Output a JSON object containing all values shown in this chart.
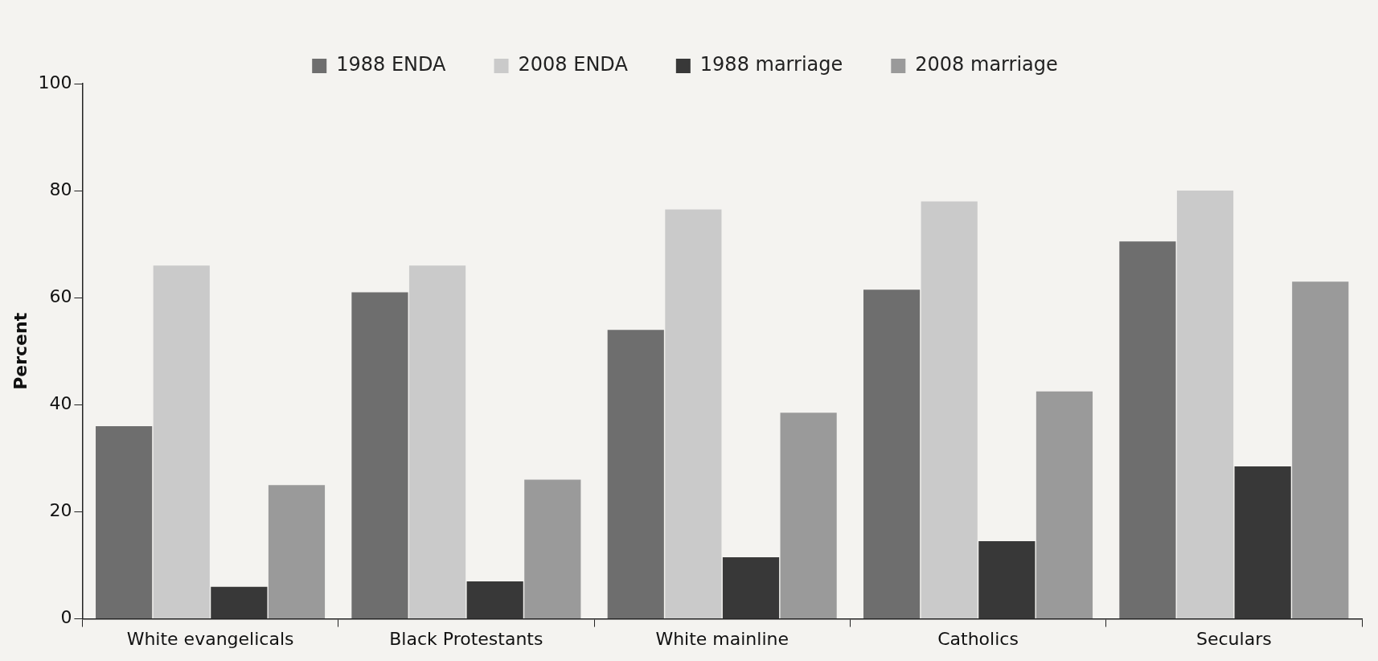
{
  "chart_data": {
    "type": "bar",
    "ylabel": "Percent",
    "categories": [
      "White evangelicals",
      "Black Protestants",
      "White mainline",
      "Catholics",
      "Seculars"
    ],
    "series": [
      {
        "name": "1988 ENDA",
        "color": "#6e6e6e",
        "values": [
          36,
          61,
          54,
          61.5,
          70.5
        ]
      },
      {
        "name": "2008 ENDA",
        "color": "#cacaca",
        "values": [
          66,
          66,
          76.5,
          78,
          80
        ]
      },
      {
        "name": "1988 marriage",
        "color": "#383838",
        "values": [
          6,
          7,
          11.5,
          14.5,
          28.5
        ]
      },
      {
        "name": "2008 marriage",
        "color": "#9a9a9a",
        "values": [
          25,
          26,
          38.5,
          42.5,
          63
        ]
      }
    ],
    "ylim": [
      0,
      100
    ],
    "yticks": [
      0,
      20,
      40,
      60,
      80,
      100
    ],
    "grid": false,
    "legend": "top"
  }
}
